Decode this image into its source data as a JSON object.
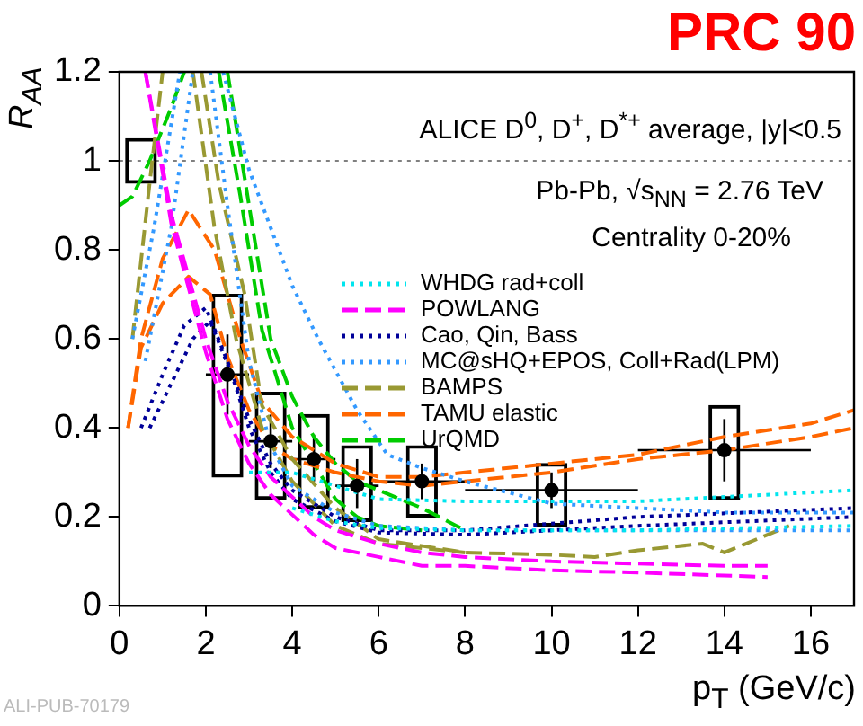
{
  "chart_data": {
    "type": "line",
    "title": "PRC 90",
    "xlabel": "p$_{T}$ (GeV/c)",
    "ylabel": "R$_{AA}$",
    "annotations": [
      "ALICE D$^{0}$, D$^{+}$, D$^{*+}$ average, |y|<0.5",
      "Pb-Pb, √s$_{NN}$ = 2.76 TeV",
      "Centrality 0-20%",
      "ALI-PUB-70179"
    ],
    "xlim": [
      0,
      17
    ],
    "xticks": [
      0,
      2,
      4,
      6,
      8,
      10,
      12,
      14,
      16
    ],
    "ylim": [
      0,
      1.2
    ],
    "yticks": [
      0,
      0.2,
      0.4,
      0.6,
      0.8,
      1,
      1.2
    ],
    "grid": false,
    "legend": "right",
    "ref_lines": [
      {
        "axis": "y",
        "value": 1,
        "color": "#808080",
        "line_style": "dotted"
      }
    ],
    "series": [
      {
        "name": "WHDG rad+coll",
        "color": "#00e5ee",
        "line_style": "dotted",
        "x": [
          3,
          4,
          5,
          6,
          8,
          12,
          17
        ],
        "values": [
          0.3,
          0.3,
          0.27,
          0.24,
          0.235,
          0.235,
          0.26
        ]
      },
      {
        "color": "#00e5ee",
        "line_style": "dotted",
        "x": [
          4,
          5,
          6,
          8,
          12,
          17
        ],
        "values": [
          0.22,
          0.19,
          0.175,
          0.17,
          0.17,
          0.18
        ]
      },
      {
        "name": "POWLANG",
        "color": "#ff00ff",
        "line_style": "dashed",
        "x": [
          0.6,
          1.2,
          2,
          2.5,
          3,
          3.5,
          4.5,
          5,
          6,
          7,
          8,
          10,
          12,
          14,
          15
        ],
        "values": [
          1.2,
          0.88,
          0.6,
          0.46,
          0.36,
          0.29,
          0.2,
          0.17,
          0.14,
          0.12,
          0.11,
          0.1,
          0.095,
          0.09,
          0.09
        ]
      },
      {
        "color": "#ff00ff",
        "line_style": "dashed",
        "x": [
          0.6,
          1.2,
          2,
          2.5,
          3,
          3.5,
          4.5,
          5,
          6,
          7,
          8,
          10,
          12,
          15
        ],
        "values": [
          1.2,
          0.86,
          0.57,
          0.42,
          0.32,
          0.25,
          0.16,
          0.13,
          0.11,
          0.09,
          0.09,
          0.08,
          0.075,
          0.065
        ]
      },
      {
        "name": "Cao, Qin, Bass",
        "color": "#000099",
        "line_style": "dotted",
        "x": [
          0.5,
          1,
          1.5,
          2,
          2.5,
          3,
          3.5,
          4,
          5,
          6,
          8,
          12,
          17
        ],
        "values": [
          0.4,
          0.52,
          0.63,
          0.67,
          0.55,
          0.42,
          0.32,
          0.26,
          0.2,
          0.17,
          0.17,
          0.2,
          0.22
        ]
      },
      {
        "color": "#000099",
        "line_style": "dotted",
        "x": [
          0.7,
          1.2,
          1.7,
          2.1,
          2.6,
          3,
          3.5,
          4,
          5,
          6,
          8,
          12,
          17
        ],
        "values": [
          0.4,
          0.5,
          0.6,
          0.64,
          0.52,
          0.4,
          0.3,
          0.24,
          0.19,
          0.165,
          0.16,
          0.18,
          0.2
        ]
      },
      {
        "name": "MC@sHQ+EPOS, Coll+Rad(LPM)",
        "color": "#3399ff",
        "line_style": "dotted",
        "x": [
          0.3,
          0.8,
          1.4,
          1.9,
          2.4,
          3,
          4,
          4.6,
          5.5,
          6.2,
          7,
          8,
          10,
          12,
          14,
          17
        ],
        "values": [
          0.6,
          0.85,
          1.2,
          null,
          1.2,
          0.98,
          0.72,
          0.6,
          0.44,
          0.34,
          0.31,
          0.28,
          0.23,
          0.22,
          0.21,
          0.21
        ]
      },
      {
        "color": "#3399ff",
        "line_style": "dotted",
        "x": [
          0.6,
          1.2,
          1.7,
          1.9,
          2.1,
          2.5,
          3,
          3.5,
          4,
          5,
          6,
          8,
          12,
          17
        ],
        "values": [
          0.55,
          0.85,
          1.2,
          null,
          1.2,
          0.9,
          0.55,
          0.36,
          0.27,
          0.21,
          0.18,
          0.17,
          0.17,
          0.17
        ]
      },
      {
        "name": "BAMPS",
        "color": "#999933",
        "line_style": "dashed",
        "x": [
          0.3,
          0.7,
          1,
          1.5,
          1.9,
          2.3,
          2.9,
          3.3,
          4,
          5,
          6,
          8,
          10,
          11,
          12,
          13.5,
          14,
          15.5
        ],
        "values": [
          0.6,
          0.95,
          1.2,
          null,
          1.2,
          0.95,
          0.7,
          0.45,
          0.33,
          0.22,
          0.15,
          0.12,
          0.115,
          0.11,
          0.125,
          0.14,
          0.12,
          0.18
        ]
      },
      {
        "color": "#999933",
        "line_style": "dashed",
        "x": [
          1.7,
          2.2,
          2.7,
          3.3,
          4,
          5,
          6,
          8
        ],
        "values": [
          1.2,
          0.85,
          0.6,
          0.4,
          0.28,
          0.18,
          0.14,
          0.12
        ]
      },
      {
        "name": "TAMU elastic",
        "color": "#ff6600",
        "line_style": "dashed",
        "x": [
          0.2,
          0.5,
          1,
          1.6,
          2.2,
          2.8,
          3.3,
          4,
          5,
          6,
          7,
          8,
          10,
          12,
          14,
          16,
          17
        ],
        "values": [
          0.4,
          0.6,
          0.78,
          0.89,
          0.8,
          0.6,
          0.46,
          0.38,
          0.32,
          0.29,
          0.29,
          0.3,
          0.32,
          0.34,
          0.38,
          0.41,
          0.44
        ]
      },
      {
        "color": "#ff6600",
        "line_style": "dashed",
        "x": [
          0.2,
          0.5,
          1,
          1.6,
          2.1,
          2.5,
          3,
          3.5,
          4,
          5,
          6,
          7,
          8,
          10,
          12,
          14,
          16,
          17
        ],
        "values": [
          0.4,
          0.58,
          0.68,
          0.74,
          0.7,
          0.56,
          0.44,
          0.36,
          0.33,
          0.3,
          0.28,
          0.27,
          0.28,
          0.3,
          0.33,
          0.35,
          0.38,
          0.4
        ]
      },
      {
        "name": "UrQMD",
        "color": "#00cc00",
        "line_style": "dashed",
        "x": [
          0,
          0.3,
          0.7,
          1.2,
          1.5,
          2,
          2.5,
          3,
          3.5,
          4,
          4.5,
          5,
          5.5,
          6,
          7,
          8
        ],
        "values": [
          0.9,
          0.92,
          1,
          1.12,
          1.2,
          null,
          1.2,
          0.9,
          0.6,
          0.47,
          0.38,
          0.32,
          0.28,
          0.26,
          0.22,
          0.17
        ]
      },
      {
        "color": "#00cc00",
        "line_style": "dashed",
        "x": [
          2.3,
          2.8,
          3.3,
          4,
          4.5,
          5,
          5.5,
          6,
          7
        ],
        "values": [
          1.2,
          0.92,
          0.62,
          0.4,
          0.32,
          0.24,
          0.2,
          0.18,
          0.17
        ]
      },
      {
        "type": "bar",
        "color": "#000000",
        "x": [
          0.5,
          2.5,
          3.5,
          4.5,
          5.5,
          7,
          10,
          14
        ],
        "base": [
          0.95,
          0.29,
          0.24,
          0.22,
          0.19,
          0.2,
          0.18,
          0.24
        ],
        "values": [
          0.1,
          0.41,
          0.24,
          0.21,
          0.17,
          0.16,
          0.14,
          0.21
        ]
      },
      {
        "type": "scatter",
        "color": "#000000",
        "marker": "circle",
        "x": [
          2.5,
          3.5,
          4.5,
          5.5,
          7,
          10,
          14
        ],
        "values": [
          0.52,
          0.37,
          0.33,
          0.27,
          0.28,
          0.26,
          0.35
        ],
        "errors": [
          [
            0.43,
            0.61
          ],
          [
            0.31,
            0.43
          ],
          [
            0.28,
            0.385
          ],
          [
            0.22,
            0.33
          ],
          [
            0.24,
            0.32
          ],
          [
            0.22,
            0.3
          ],
          [
            0.28,
            0.42
          ]
        ],
        "xerrors": [
          [
            2,
            3
          ],
          [
            3,
            4
          ],
          [
            4,
            5
          ],
          [
            5,
            6
          ],
          [
            6,
            8
          ],
          [
            8,
            12
          ],
          [
            12,
            16
          ]
        ]
      }
    ]
  }
}
